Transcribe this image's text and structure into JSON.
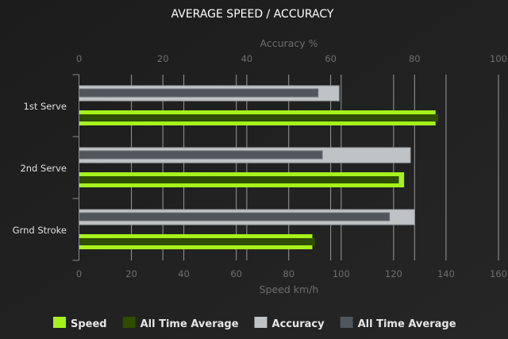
{
  "chart_data": {
    "type": "bar",
    "orientation": "horizontal",
    "title": "AVERAGE SPEED / ACCURACY",
    "categories": [
      "1st Serve",
      "2nd Serve",
      "Grnd Stroke"
    ],
    "x_bottom": {
      "label": "Speed km/h",
      "range": [
        0,
        160
      ],
      "ticks": [
        0,
        20,
        40,
        60,
        80,
        100,
        120,
        140,
        160
      ]
    },
    "x_top": {
      "label": "Accuracy %",
      "range": [
        0,
        100
      ],
      "ticks": [
        0,
        20,
        40,
        60,
        80,
        100
      ]
    },
    "grid": true,
    "legend_position": "bottom",
    "series": [
      {
        "name": "Speed",
        "axis": "speed",
        "color": "#a6f21c",
        "values": [
          136,
          124,
          89
        ]
      },
      {
        "name": "All Time Average",
        "axis": "speed",
        "color": "#2e4d00",
        "values": [
          137,
          122,
          90
        ]
      },
      {
        "name": "Accuracy",
        "axis": "accuracy",
        "color": "#bfc3c5",
        "values": [
          62,
          79,
          80
        ]
      },
      {
        "name": "All Time Average",
        "axis": "accuracy",
        "color": "#50565c",
        "values": [
          57,
          58,
          74
        ]
      }
    ]
  }
}
